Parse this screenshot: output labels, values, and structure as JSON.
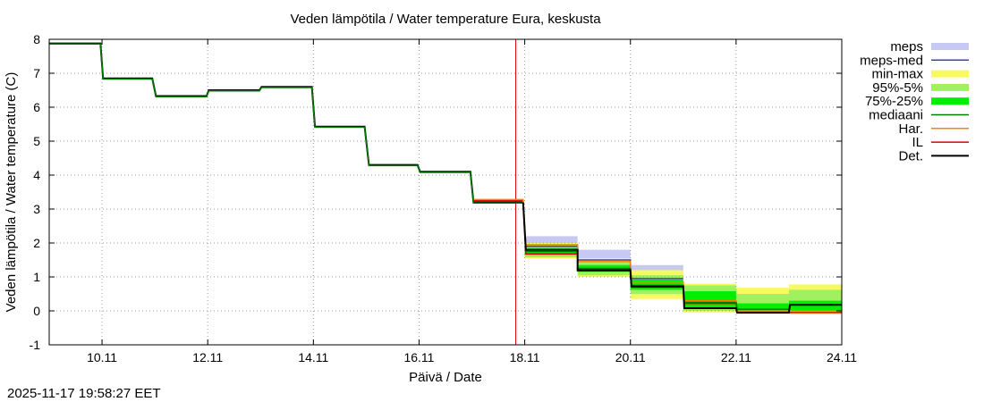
{
  "chart_data": {
    "type": "line",
    "title": "Veden lämpötila / Water temperature Eura, keskusta",
    "xlabel": "Päivä / Date",
    "ylabel": "Veden lämpötila / Water temperature (C)",
    "timestamp": "2025-11-17 19:58:27 EET",
    "x_unit": "days since 2025-11-00",
    "xlim": [
      9.0,
      24.0
    ],
    "ylim": [
      -1,
      8
    ],
    "x_ticks": [
      {
        "x": 10,
        "label": "10.11"
      },
      {
        "x": 12,
        "label": "12.11"
      },
      {
        "x": 14,
        "label": "14.11"
      },
      {
        "x": 16,
        "label": "16.11"
      },
      {
        "x": 18,
        "label": "18.11"
      },
      {
        "x": 20,
        "label": "20.11"
      },
      {
        "x": 22,
        "label": "22.11"
      },
      {
        "x": 24,
        "label": "24.11"
      }
    ],
    "y_ticks": [
      -1,
      0,
      1,
      2,
      3,
      4,
      5,
      6,
      7,
      8
    ],
    "grid": true,
    "forecast_start_x": 17.83,
    "legend": [
      {
        "key": "meps",
        "label": "meps",
        "color": "#c8c8f4",
        "style": "band"
      },
      {
        "key": "meps_med",
        "label": "meps-med",
        "color": "#4040b0",
        "style": "line"
      },
      {
        "key": "minmax",
        "label": "min-max",
        "color": "#f8f860",
        "style": "band"
      },
      {
        "key": "p95_5",
        "label": "95%-5%",
        "color": "#a0f060",
        "style": "band"
      },
      {
        "key": "p75_25",
        "label": "75%-25%",
        "color": "#00ee00",
        "style": "band"
      },
      {
        "key": "median",
        "label": "mediaani",
        "color": "#007a00",
        "style": "line"
      },
      {
        "key": "har",
        "label": "Har.",
        "color": "#ff8000",
        "style": "line"
      },
      {
        "key": "il",
        "label": "IL",
        "color": "#dd0000",
        "style": "line"
      },
      {
        "key": "det",
        "label": "Det.",
        "color": "#000000",
        "style": "line"
      }
    ],
    "bands": {
      "meps": [
        {
          "x0": 18.0,
          "x1": 19.0,
          "lo": 1.7,
          "hi": 2.2
        },
        {
          "x0": 19.0,
          "x1": 20.0,
          "lo": 1.2,
          "hi": 1.8
        },
        {
          "x0": 20.0,
          "x1": 21.0,
          "lo": 0.8,
          "hi": 1.35
        }
      ],
      "minmax": [
        {
          "x0": 18.0,
          "x1": 19.0,
          "lo": 1.55,
          "hi": 2.0
        },
        {
          "x0": 19.0,
          "x1": 20.0,
          "lo": 1.0,
          "hi": 1.55
        },
        {
          "x0": 20.0,
          "x1": 21.0,
          "lo": 0.35,
          "hi": 1.2
        },
        {
          "x0": 21.0,
          "x1": 22.0,
          "lo": -0.05,
          "hi": 0.8
        },
        {
          "x0": 22.0,
          "x1": 23.0,
          "lo": -0.1,
          "hi": 0.68
        },
        {
          "x0": 23.0,
          "x1": 24.0,
          "lo": -0.1,
          "hi": 0.78
        }
      ],
      "p95_5": [
        {
          "x0": 18.0,
          "x1": 19.0,
          "lo": 1.58,
          "hi": 1.95
        },
        {
          "x0": 19.0,
          "x1": 20.0,
          "lo": 1.05,
          "hi": 1.48
        },
        {
          "x0": 20.0,
          "x1": 21.0,
          "lo": 0.5,
          "hi": 1.05
        },
        {
          "x0": 21.0,
          "x1": 22.0,
          "lo": 0.0,
          "hi": 0.75
        },
        {
          "x0": 22.0,
          "x1": 23.0,
          "lo": -0.05,
          "hi": 0.5
        },
        {
          "x0": 23.0,
          "x1": 24.0,
          "lo": -0.05,
          "hi": 0.62
        }
      ],
      "p75_25": [
        {
          "x0": 18.0,
          "x1": 19.0,
          "lo": 1.65,
          "hi": 1.85
        },
        {
          "x0": 19.0,
          "x1": 20.0,
          "lo": 1.15,
          "hi": 1.35
        },
        {
          "x0": 20.0,
          "x1": 21.0,
          "lo": 0.62,
          "hi": 0.92
        },
        {
          "x0": 21.0,
          "x1": 22.0,
          "lo": 0.1,
          "hi": 0.58
        },
        {
          "x0": 22.0,
          "x1": 23.0,
          "lo": 0.0,
          "hi": 0.22
        },
        {
          "x0": 23.0,
          "x1": 24.0,
          "lo": 0.0,
          "hi": 0.3
        }
      ]
    },
    "series": [
      {
        "key": "det",
        "name": "Det. (observed)",
        "steps": [
          {
            "x": 9.0,
            "y": 7.88
          },
          {
            "x": 9.97,
            "y": 7.88
          },
          {
            "x": 10.02,
            "y": 6.85
          },
          {
            "x": 10.95,
            "y": 6.85
          },
          {
            "x": 11.02,
            "y": 6.33
          },
          {
            "x": 11.98,
            "y": 6.33
          },
          {
            "x": 12.02,
            "y": 6.5
          },
          {
            "x": 12.98,
            "y": 6.5
          },
          {
            "x": 13.02,
            "y": 6.6
          },
          {
            "x": 13.97,
            "y": 6.6
          },
          {
            "x": 14.03,
            "y": 5.43
          },
          {
            "x": 14.97,
            "y": 5.43
          },
          {
            "x": 15.05,
            "y": 4.3
          },
          {
            "x": 15.97,
            "y": 4.3
          },
          {
            "x": 16.02,
            "y": 4.1
          },
          {
            "x": 16.97,
            "y": 4.1
          },
          {
            "x": 17.03,
            "y": 3.2
          },
          {
            "x": 17.97,
            "y": 3.2
          }
        ]
      },
      {
        "key": "meps_med",
        "name": "meps-med",
        "steps": [
          {
            "x": 18.0,
            "y": 1.9
          },
          {
            "x": 19.0,
            "y": 1.9
          },
          {
            "x": 19.0,
            "y": 1.5
          },
          {
            "x": 20.0,
            "y": 1.5
          },
          {
            "x": 20.0,
            "y": 0.95
          },
          {
            "x": 21.0,
            "y": 0.95
          }
        ]
      },
      {
        "key": "il",
        "name": "IL",
        "steps": [
          {
            "x": 17.03,
            "y": 3.25
          },
          {
            "x": 17.97,
            "y": 3.25
          },
          {
            "x": 18.02,
            "y": 1.68
          },
          {
            "x": 19.0,
            "y": 1.68
          },
          {
            "x": 19.0,
            "y": 1.18
          },
          {
            "x": 20.0,
            "y": 1.18
          },
          {
            "x": 20.02,
            "y": 0.7
          },
          {
            "x": 21.0,
            "y": 0.7
          },
          {
            "x": 21.02,
            "y": 0.22
          },
          {
            "x": 22.0,
            "y": 0.22
          },
          {
            "x": 22.02,
            "y": -0.05
          },
          {
            "x": 24.0,
            "y": -0.05
          }
        ]
      },
      {
        "key": "har",
        "name": "Har.",
        "steps": [
          {
            "x": 17.03,
            "y": 3.28
          },
          {
            "x": 17.97,
            "y": 3.28
          },
          {
            "x": 18.02,
            "y": 1.95
          },
          {
            "x": 19.0,
            "y": 1.95
          },
          {
            "x": 19.0,
            "y": 1.45
          },
          {
            "x": 20.0,
            "y": 1.45
          },
          {
            "x": 20.02,
            "y": 0.85
          },
          {
            "x": 21.0,
            "y": 0.85
          },
          {
            "x": 21.02,
            "y": 0.3
          },
          {
            "x": 22.0,
            "y": 0.3
          },
          {
            "x": 22.02,
            "y": 0.0
          },
          {
            "x": 24.0,
            "y": 0.0
          }
        ]
      },
      {
        "key": "median",
        "name": "mediaani",
        "steps": [
          {
            "x": 9.0,
            "y": 7.86
          },
          {
            "x": 9.97,
            "y": 7.86
          },
          {
            "x": 10.02,
            "y": 6.83
          },
          {
            "x": 10.95,
            "y": 6.83
          },
          {
            "x": 11.02,
            "y": 6.31
          },
          {
            "x": 11.98,
            "y": 6.31
          },
          {
            "x": 12.02,
            "y": 6.48
          },
          {
            "x": 12.98,
            "y": 6.48
          },
          {
            "x": 13.02,
            "y": 6.58
          },
          {
            "x": 13.97,
            "y": 6.58
          },
          {
            "x": 14.03,
            "y": 5.41
          },
          {
            "x": 14.97,
            "y": 5.41
          },
          {
            "x": 15.05,
            "y": 4.28
          },
          {
            "x": 15.97,
            "y": 4.28
          },
          {
            "x": 16.02,
            "y": 4.08
          },
          {
            "x": 16.97,
            "y": 4.08
          },
          {
            "x": 17.03,
            "y": 3.18
          },
          {
            "x": 17.97,
            "y": 3.18
          },
          {
            "x": 18.02,
            "y": 1.75
          },
          {
            "x": 19.0,
            "y": 1.75
          },
          {
            "x": 19.0,
            "y": 1.25
          },
          {
            "x": 20.0,
            "y": 1.25
          },
          {
            "x": 20.02,
            "y": 0.75
          },
          {
            "x": 21.0,
            "y": 0.75
          },
          {
            "x": 21.02,
            "y": 0.25
          },
          {
            "x": 22.0,
            "y": 0.25
          },
          {
            "x": 22.02,
            "y": 0.05
          },
          {
            "x": 23.0,
            "y": 0.05
          },
          {
            "x": 23.02,
            "y": 0.18
          },
          {
            "x": 24.0,
            "y": 0.18
          }
        ]
      },
      {
        "key": "det",
        "name": "Det. (forecast)",
        "steps": [
          {
            "x": 17.97,
            "y": 3.2
          },
          {
            "x": 18.02,
            "y": 1.8
          },
          {
            "x": 19.0,
            "y": 1.8
          },
          {
            "x": 19.0,
            "y": 1.2
          },
          {
            "x": 20.0,
            "y": 1.2
          },
          {
            "x": 20.02,
            "y": 0.72
          },
          {
            "x": 21.0,
            "y": 0.72
          },
          {
            "x": 21.02,
            "y": 0.08
          },
          {
            "x": 22.0,
            "y": 0.08
          },
          {
            "x": 22.02,
            "y": -0.05
          },
          {
            "x": 23.0,
            "y": -0.05
          },
          {
            "x": 23.02,
            "y": 0.18
          },
          {
            "x": 24.0,
            "y": 0.18
          }
        ]
      }
    ]
  }
}
